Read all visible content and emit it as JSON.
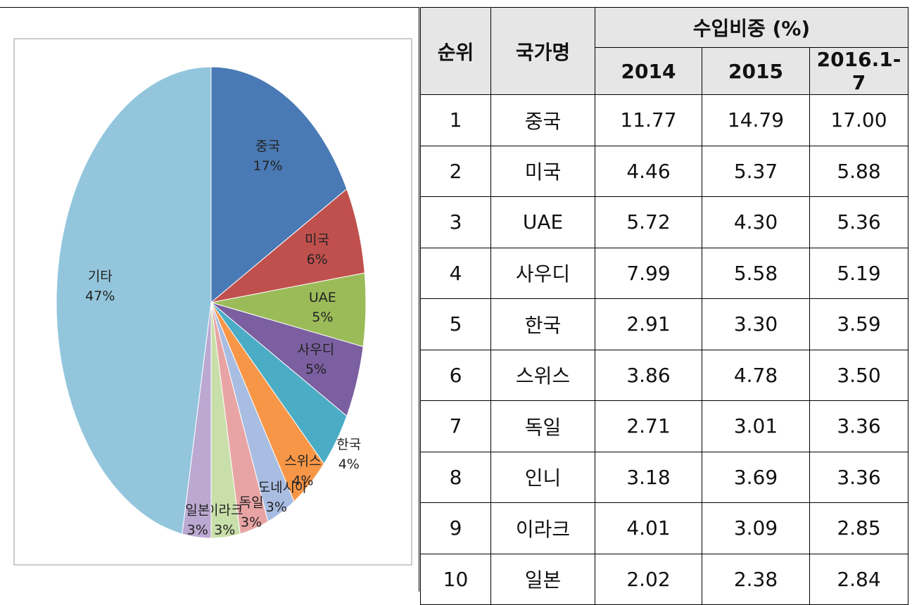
{
  "chart_data": {
    "type": "pie",
    "categories": [
      "중국",
      "미국",
      "UAE",
      "사우디",
      "한국",
      "스위스",
      "인도네시아",
      "독일",
      "이라크",
      "일본",
      "기타"
    ],
    "values": [
      17,
      6,
      5,
      5,
      4,
      4,
      3,
      3,
      3,
      3,
      47
    ],
    "value_labels": [
      "17%",
      "6%",
      "5%",
      "5%",
      "4%",
      "4%",
      "3%",
      "3%",
      "3%",
      "3%",
      "47%"
    ],
    "colors": [
      "#4a7ab5",
      "#c0504d",
      "#9bbb59",
      "#7b5fa0",
      "#4bacc6",
      "#f79646",
      "#a9bde3",
      "#e8a4a4",
      "#c9dfa9",
      "#bba9d2",
      "#93c6dc"
    ]
  },
  "table": {
    "header": [
      "순위",
      "국가명",
      "수입비중 (%)"
    ],
    "years": [
      "2014",
      "2015",
      "2016.1-7"
    ],
    "rows": [
      [
        "1",
        "중국",
        "11.77",
        "14.79",
        "17.00"
      ],
      [
        "2",
        "미국",
        "4.46",
        "5.37",
        "5.88"
      ],
      [
        "3",
        "UAE",
        "5.72",
        "4.30",
        "5.36"
      ],
      [
        "4",
        "사우디",
        "7.99",
        "5.58",
        "5.19"
      ],
      [
        "5",
        "한국",
        "2.91",
        "3.30",
        "3.59"
      ],
      [
        "6",
        "스위스",
        "3.86",
        "4.78",
        "3.50"
      ],
      [
        "7",
        "독일",
        "2.71",
        "3.01",
        "3.36"
      ],
      [
        "8",
        "인니",
        "3.18",
        "3.69",
        "3.36"
      ],
      [
        "9",
        "이라크",
        "4.01",
        "3.09",
        "2.85"
      ],
      [
        "10",
        "일본",
        "2.02",
        "2.38",
        "2.84"
      ]
    ]
  }
}
